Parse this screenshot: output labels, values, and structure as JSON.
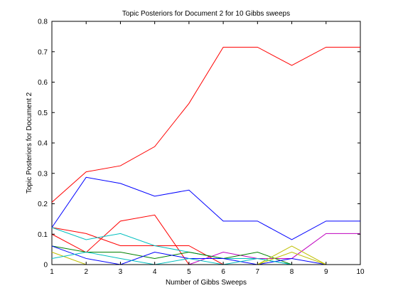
{
  "chart_data": {
    "type": "line",
    "title": "Topic Posteriors for Document 2 for 10 Gibbs sweeps",
    "xlabel": "Number of Gibbs Sweeps",
    "ylabel": "Topic Posteriors for Document 2",
    "xlim": [
      1,
      10
    ],
    "ylim": [
      0,
      0.8
    ],
    "x": [
      1,
      2,
      3,
      4,
      5,
      6,
      7,
      8,
      9,
      10
    ],
    "x_ticks": [
      1,
      2,
      3,
      4,
      5,
      6,
      7,
      8,
      9,
      10
    ],
    "y_ticks": [
      0,
      0.1,
      0.2,
      0.3,
      0.4,
      0.5,
      0.6,
      0.7,
      0.8
    ],
    "y_tick_labels": [
      "0",
      "0.1",
      "0.2",
      "0.3",
      "0.4",
      "0.5",
      "0.6",
      "0.7",
      "0.8"
    ],
    "grid": false,
    "series": [
      {
        "color": "#ff0000",
        "values": [
          0.205,
          0.305,
          0.325,
          0.388,
          0.53,
          0.715,
          0.715,
          0.655,
          0.715,
          0.715
        ]
      },
      {
        "color": "#0000ff",
        "values": [
          0.122,
          0.287,
          0.267,
          0.225,
          0.245,
          0.143,
          0.143,
          0.082,
          0.143,
          0.143
        ]
      },
      {
        "color": "#ff0000",
        "values": [
          0.1,
          0.04,
          0.143,
          0.163,
          0.0,
          0.0,
          0.0,
          0.0,
          0.0,
          0.0
        ]
      },
      {
        "color": "#ff0000",
        "values": [
          0.122,
          0.102,
          0.062,
          0.062,
          0.062,
          0.0,
          0.0,
          0.0,
          0.0,
          0.0
        ]
      },
      {
        "color": "#00bfbf",
        "values": [
          0.122,
          0.082,
          0.102,
          0.062,
          0.041,
          0.02,
          0.02,
          0.0,
          0.0,
          0.0
        ]
      },
      {
        "color": "#bf00bf",
        "values": [
          0.0,
          0.0,
          0.0,
          0.0,
          0.0,
          0.041,
          0.02,
          0.02,
          0.102,
          0.102
        ]
      },
      {
        "color": "#008000",
        "values": [
          0.061,
          0.041,
          0.041,
          0.02,
          0.041,
          0.02,
          0.041,
          0.0,
          0.0,
          0.0
        ]
      },
      {
        "color": "#bfbf00",
        "values": [
          0.041,
          0.0,
          0.0,
          0.0,
          0.0,
          0.0,
          0.0,
          0.061,
          0.0,
          0.0
        ]
      },
      {
        "color": "#0000ff",
        "values": [
          0.061,
          0.02,
          0.0,
          0.041,
          0.02,
          0.02,
          0.0,
          0.02,
          0.0,
          0.0
        ]
      },
      {
        "color": "#00bfbf",
        "values": [
          0.02,
          0.041,
          0.02,
          0.0,
          0.02,
          0.0,
          0.02,
          0.0,
          0.0,
          0.0
        ]
      },
      {
        "color": "#bfbf00",
        "values": [
          0.0,
          0.0,
          0.0,
          0.0,
          0.0,
          0.0,
          0.0,
          0.041,
          0.0,
          0.0
        ]
      },
      {
        "color": "#000000",
        "values": [
          0.0,
          0.0,
          0.0,
          0.0,
          0.0,
          0.0,
          0.0,
          0.0,
          0.0,
          0.0
        ]
      }
    ]
  }
}
